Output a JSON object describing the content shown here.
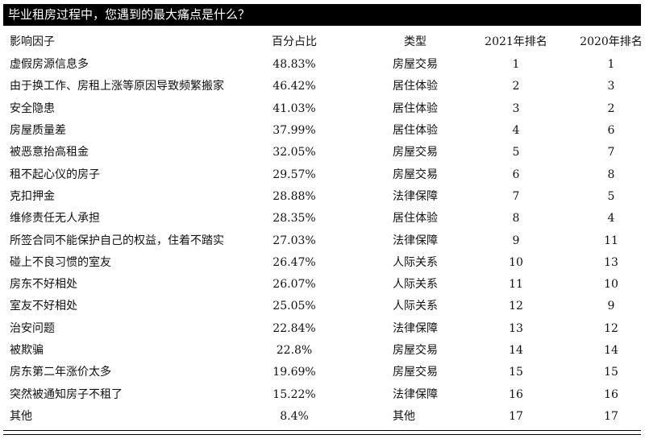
{
  "header": {
    "title": "毕业租房过程中，您遇到的最大痛点是什么？"
  },
  "table": {
    "columns": [
      "影响因子",
      "百分占比",
      "类型",
      "2021年排名",
      "2020年排名"
    ],
    "rows": [
      [
        "虚假房源信息多",
        "48.83%",
        "房屋交易",
        1,
        1
      ],
      [
        "由于换工作、房租上涨等原因导致频繁搬家",
        "46.42%",
        "居住体验",
        2,
        3
      ],
      [
        "安全隐患",
        "41.03%",
        "居住体验",
        3,
        2
      ],
      [
        "房屋质量差",
        "37.99%",
        "居住体验",
        4,
        6
      ],
      [
        "被恶意抬高租金",
        "32.05%",
        "房屋交易",
        5,
        7
      ],
      [
        "租不起心仪的房子",
        "29.57%",
        "房屋交易",
        6,
        8
      ],
      [
        "克扣押金",
        "28.88%",
        "法律保障",
        7,
        5
      ],
      [
        "维修责任无人承担",
        "28.35%",
        "居住体验",
        8,
        4
      ],
      [
        "所签合同不能保护自己的权益，住着不踏实",
        "27.03%",
        "法律保障",
        9,
        11
      ],
      [
        "碰上不良习惯的室友",
        "26.47%",
        "人际关系",
        10,
        13
      ],
      [
        "房东不好相处",
        "26.07%",
        "人际关系",
        11,
        10
      ],
      [
        "室友不好相处",
        "25.05%",
        "人际关系",
        12,
        9
      ],
      [
        "治安问题",
        "22.84%",
        "法律保障",
        13,
        12
      ],
      [
        "被欺骗",
        "22.8%",
        "房屋交易",
        14,
        14
      ],
      [
        "房东第二年涨价太多",
        "19.69%",
        "房屋交易",
        15,
        15
      ],
      [
        "突然被通知房子不租了",
        "15.22%",
        "法律保障",
        16,
        16
      ],
      [
        "其他",
        "8.4%",
        "其他",
        17,
        17
      ]
    ]
  }
}
